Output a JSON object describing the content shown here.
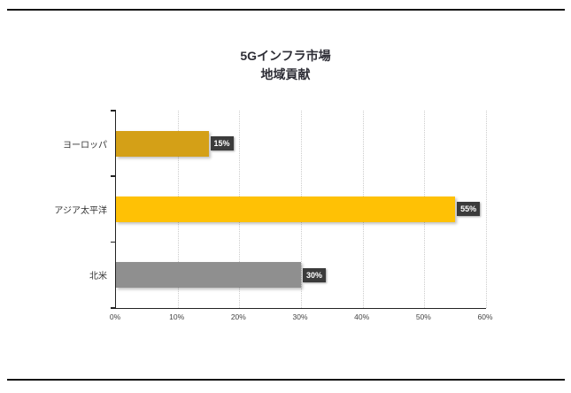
{
  "page": {
    "title_line1": "5Gインフラ市場",
    "title_line2": "地域貢献"
  },
  "chart_data": {
    "type": "bar",
    "orientation": "horizontal",
    "title": "5Gインフラ市場 地域貢献",
    "categories": [
      "ヨーロッパ",
      "アジア太平洋",
      "北米"
    ],
    "values": [
      15,
      55,
      30
    ],
    "value_labels": [
      "15%",
      "55%",
      "30%"
    ],
    "bar_colors": [
      "#D4A017",
      "#FFC105",
      "#8F8F8F"
    ],
    "label_box_color": "#3B3B3B",
    "x_ticks": [
      "0%",
      "10%",
      "20%",
      "30%",
      "40%",
      "50%",
      "60%"
    ],
    "xlim": [
      0,
      60
    ],
    "xlabel": "",
    "ylabel": "",
    "grid": "vertical-dotted",
    "legend": "none"
  }
}
